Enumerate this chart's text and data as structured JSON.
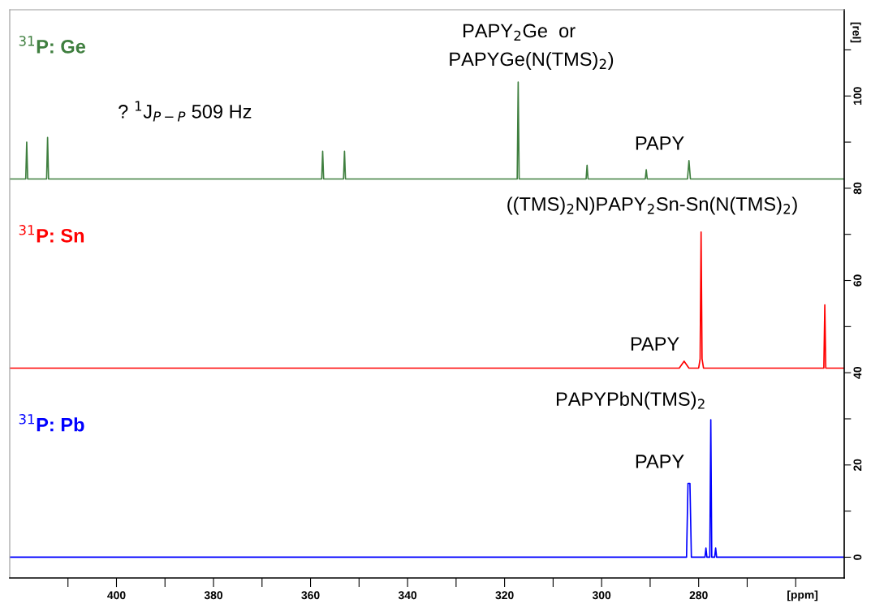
{
  "chart_data": {
    "type": "line",
    "xlabel": "[ppm]",
    "ylabel": "[rel]",
    "xlim": [
      422,
      250
    ],
    "ylim": [
      -4.5,
      118.7
    ],
    "xticks": [
      {
        "value": 410,
        "label": null
      },
      400,
      {
        "value": 390,
        "label": null
      },
      380,
      {
        "value": 370,
        "label": null
      },
      360,
      {
        "value": 350,
        "label": null
      },
      340,
      {
        "value": 330,
        "label": null
      },
      320,
      {
        "value": 310,
        "label": null
      },
      300,
      {
        "value": 290,
        "label": null
      },
      280,
      {
        "value": 270,
        "label": null
      },
      {
        "value": 260,
        "label": null
      }
    ],
    "yticks": [
      0,
      {
        "value": 10,
        "label": null
      },
      20,
      {
        "value": 30,
        "label": null
      },
      40,
      {
        "value": 50,
        "label": null
      },
      60,
      {
        "value": 70,
        "label": null
      },
      80,
      {
        "value": 90,
        "label": null
      },
      100,
      {
        "value": 110,
        "label": null
      }
    ],
    "grid": false,
    "legend": false,
    "marker": "none",
    "line_style": "solid",
    "series": [
      {
        "name": "$^{31}$P: Ge",
        "color": "#3f7f3f",
        "x": [
          422,
          418.7,
          418.5,
          418.3,
          414.4,
          414.2,
          414.0,
          357.7,
          357.5,
          357.3,
          353.2,
          353.0,
          352.8,
          317.4,
          317.2,
          317.0,
          303.2,
          303.0,
          302.8,
          291.0,
          290.8,
          290.6,
          282.3,
          282.0,
          281.7,
          250
        ],
        "values": [
          82,
          82,
          90,
          82,
          82,
          91,
          82,
          82,
          88,
          82,
          82,
          88,
          82,
          82,
          103,
          82,
          82,
          85,
          82,
          82,
          84,
          82,
          82,
          86,
          82,
          82
        ]
      },
      {
        "name": "$^{31}$P: Sn",
        "color": "#ff0000",
        "x": [
          422,
          284,
          283,
          282,
          280,
          279.7,
          279.5,
          279.3,
          279,
          254.2,
          254.0,
          253.8,
          250
        ],
        "values": [
          41,
          41,
          42.5,
          41,
          41,
          43,
          70.5,
          43,
          41,
          41,
          54.7,
          41,
          41
        ]
      },
      {
        "name": "$^{31}$P: Pb",
        "color": "#0000ff",
        "x": [
          422,
          282.5,
          282.2,
          282.0,
          281.8,
          281.5,
          278.7,
          278.5,
          278.3,
          277.7,
          277.5,
          277.3,
          276.7,
          276.5,
          276.3,
          250
        ],
        "values": [
          0,
          0,
          16,
          16,
          16,
          0,
          0,
          2,
          0,
          0,
          29.8,
          0,
          0,
          2,
          0,
          0
        ]
      }
    ],
    "annotations": [
      "PAPY$_{2}$Ge  or",
      "PAPYGe(N(TMS)$_{2}$)",
      "? $^{1}$J$_{P−P}$ 509 Hz",
      {
        "text": "PAPY",
        "x": 282,
        "y": 86
      },
      "((TMS)$_{2}$N)PAPY$_{2}$Sn-Sn(N(TMS)$_{2}$)",
      {
        "text": "PAPY",
        "x": 283,
        "y": 42.5
      },
      {
        "text": "PAPYPbN(TMS)$_{2}$",
        "x": 277.5,
        "y": 30.5
      },
      {
        "text": "PAPY",
        "x": 282,
        "y": 17
      }
    ]
  }
}
